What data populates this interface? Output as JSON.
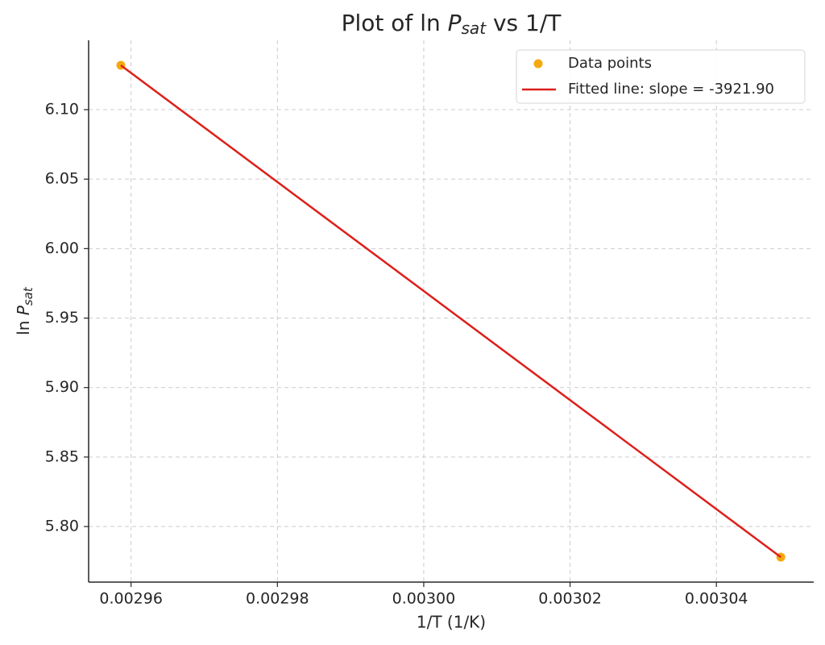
{
  "chart_data": {
    "type": "scatter",
    "title": [
      "Plot of ln ",
      "P",
      "sat",
      " vs 1/T"
    ],
    "xlabel": "1/T (1/K)",
    "ylabel": [
      "ln ",
      "P",
      "sat"
    ],
    "x": [
      0.0029586,
      0.0030488
    ],
    "series": [
      {
        "name": "Data points",
        "style": "marker",
        "color": "#f5a80f",
        "values": [
          6.1319,
          5.778
        ]
      },
      {
        "name": "Fitted line: slope = -3921.90",
        "style": "line",
        "color": "#dd1f1a",
        "values": [
          6.1319,
          5.778
        ]
      }
    ],
    "xlim": [
      0.0029542,
      0.0030533
    ],
    "ylim": [
      5.76,
      6.1499
    ],
    "xticks": [
      0.00296,
      0.00298,
      {
        "value": 0.003,
        "label": "0.00300"
      },
      0.00302,
      0.00304
    ],
    "yticks": [
      {
        "value": 5.8,
        "label": "5.80"
      },
      5.85,
      {
        "value": 5.9,
        "label": "5.90"
      },
      5.95,
      {
        "value": 6.0,
        "label": "6.00"
      },
      6.05,
      {
        "value": 6.1,
        "label": "6.10"
      }
    ],
    "grid": true,
    "legend": "upper-right"
  }
}
